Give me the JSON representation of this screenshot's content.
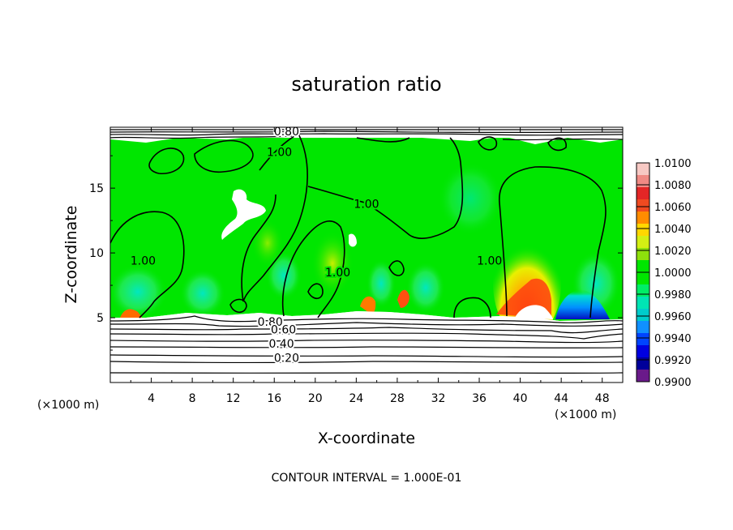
{
  "chart_data": {
    "type": "heatmap",
    "title": "saturation ratio",
    "xlabel": "X-coordinate",
    "ylabel": "Z-coordinate",
    "x_unit_left": "(×1000 m)",
    "x_unit_right": "(×1000 m)",
    "xlim": [
      0,
      50
    ],
    "ylim": [
      0,
      19.7
    ],
    "x_ticks": [
      "4",
      "8",
      "12",
      "16",
      "20",
      "24",
      "28",
      "32",
      "36",
      "40",
      "44",
      "48"
    ],
    "y_ticks": [
      "5",
      "10",
      "15"
    ],
    "footer": "CONTOUR INTERVAL = 1.000E-01",
    "contour_labels": [
      {
        "text": "0.80",
        "x": 17.2,
        "z": 19.4
      },
      {
        "text": "1.00",
        "x": 16.5,
        "z": 17.8
      },
      {
        "text": "1.00",
        "x": 25.0,
        "z": 13.8
      },
      {
        "text": "1.00",
        "x": 3.2,
        "z": 9.4
      },
      {
        "text": "1.00",
        "x": 22.2,
        "z": 8.5
      },
      {
        "text": "1.00",
        "x": 37.0,
        "z": 9.4
      },
      {
        "text": "0.80",
        "x": 15.6,
        "z": 4.7
      },
      {
        "text": "0.60",
        "x": 16.9,
        "z": 4.1
      },
      {
        "text": "0.40",
        "x": 16.7,
        "z": 3.0
      },
      {
        "text": "0.20",
        "x": 17.2,
        "z": 1.9
      }
    ],
    "colorbar": {
      "labels": [
        "1.0100",
        "1.0080",
        "1.0060",
        "1.0040",
        "1.0020",
        "1.0000",
        "0.9980",
        "0.9960",
        "0.9940",
        "0.9920",
        "0.9900"
      ],
      "colors": [
        "#f7c9c4",
        "#f08a84",
        "#e32626",
        "#f04a20",
        "#ff8c00",
        "#ffd700",
        "#d4ef14",
        "#8ee00c",
        "#00e600",
        "#00e600",
        "#00ee66",
        "#00e5b4",
        "#00cccc",
        "#1090ff",
        "#0044ff",
        "#0000e0",
        "#00009a",
        "#6a1a8a"
      ],
      "range": [
        0.99,
        1.01
      ]
    }
  }
}
